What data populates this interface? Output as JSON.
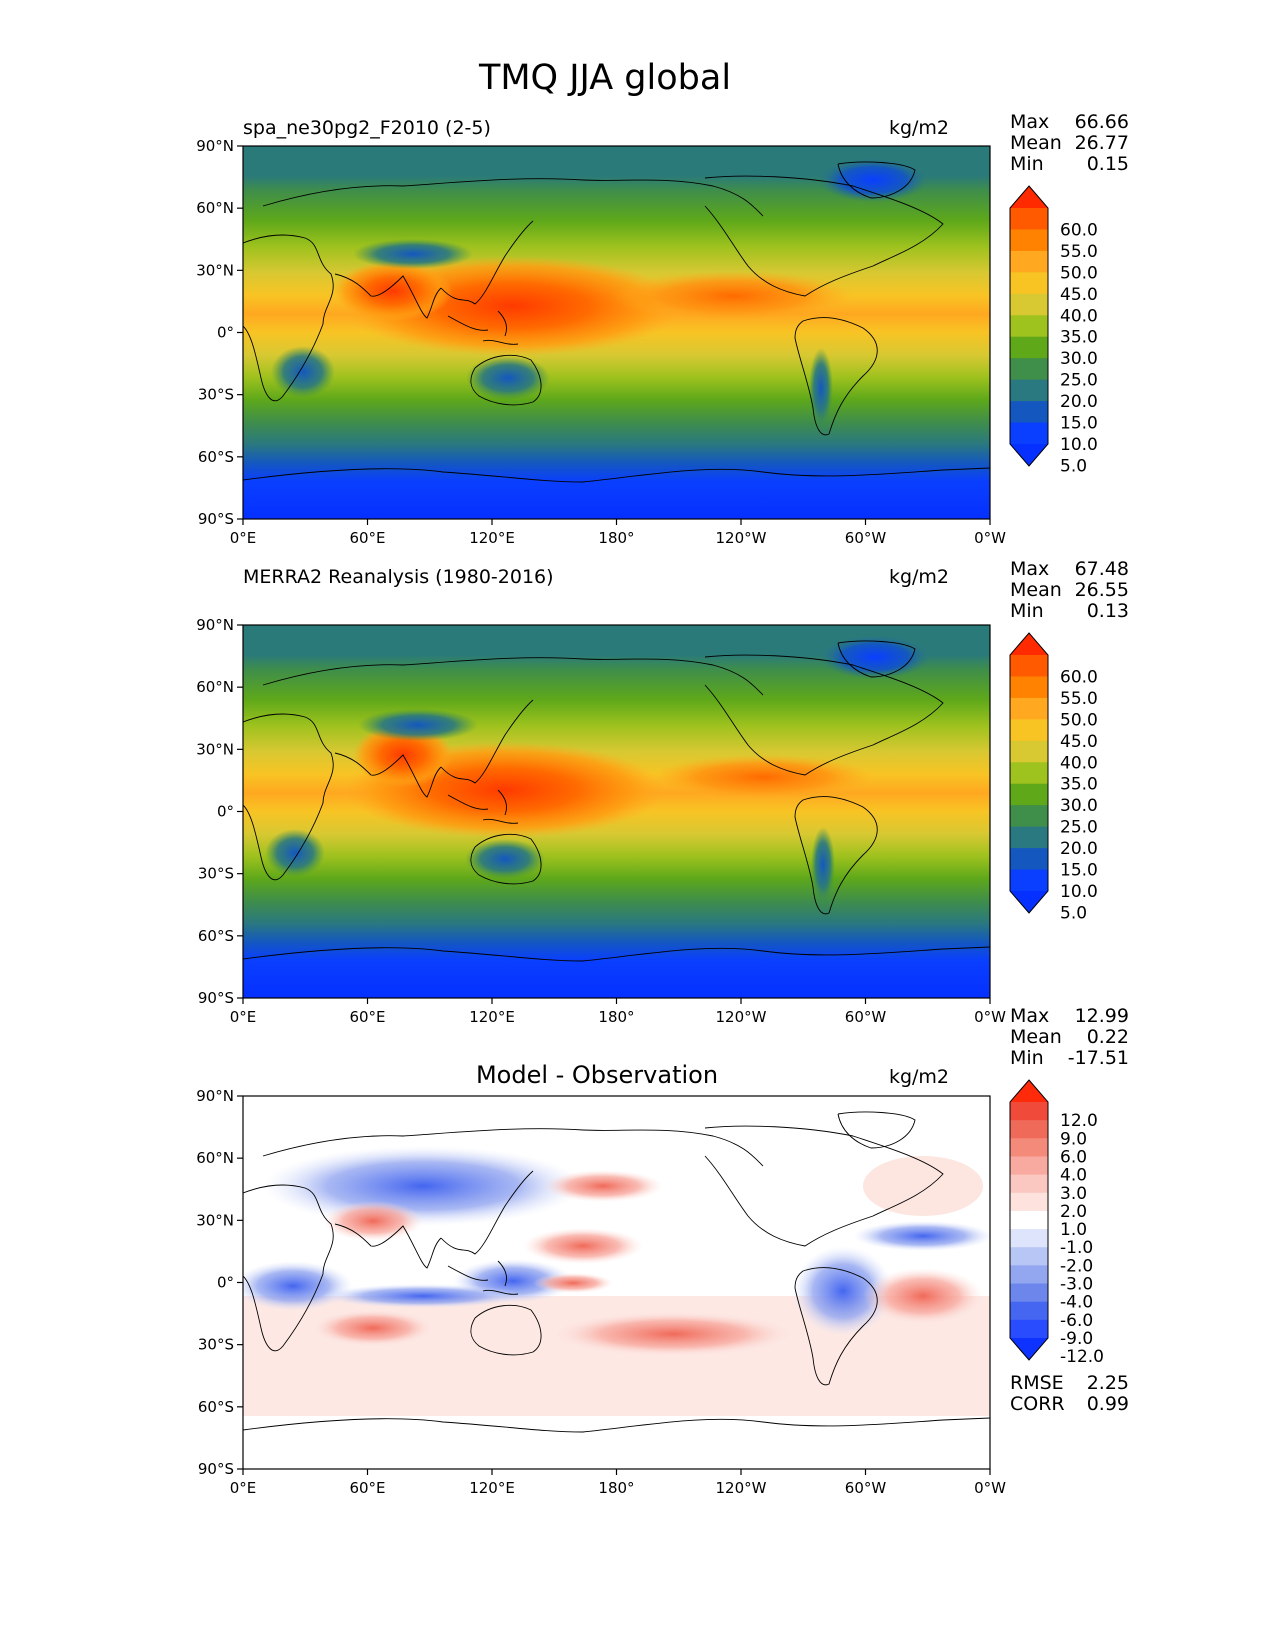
{
  "title": "TMQ JJA global",
  "axes": {
    "lat_ticks": [
      "90°N",
      "60°N",
      "30°N",
      "0°",
      "30°S",
      "60°S",
      "90°S"
    ],
    "lon_ticks": [
      "0°E",
      "60°E",
      "120°E",
      "180°",
      "120°W",
      "60°W",
      "0°W"
    ]
  },
  "panels": [
    {
      "title": "spa_ne30pg2_F2010 (2-5)",
      "units": "kg/m2",
      "stats": [
        {
          "label": "Max",
          "value": "66.66"
        },
        {
          "label": "Mean",
          "value": "26.77"
        },
        {
          "label": "Min",
          "value": "0.15"
        }
      ],
      "colorbar": {
        "labels": [
          "60.0",
          "55.0",
          "50.0",
          "45.0",
          "40.0",
          "35.0",
          "30.0",
          "25.0",
          "20.0",
          "15.0",
          "10.0",
          "5.0"
        ],
        "colors": [
          "#ff2a00",
          "#ff5a00",
          "#ff8200",
          "#ffa820",
          "#f8c424",
          "#d8c832",
          "#9ec21e",
          "#5ea81a",
          "#3f8e4a",
          "#2a7880",
          "#1458bf",
          "#0a3fff",
          "#0530ff"
        ]
      }
    },
    {
      "title": "MERRA2 Reanalysis (1980-2016)",
      "units": "kg/m2",
      "stats": [
        {
          "label": "Max",
          "value": "67.48"
        },
        {
          "label": "Mean",
          "value": "26.55"
        },
        {
          "label": "Min",
          "value": "0.13"
        }
      ],
      "colorbar": {
        "labels": [
          "60.0",
          "55.0",
          "50.0",
          "45.0",
          "40.0",
          "35.0",
          "30.0",
          "25.0",
          "20.0",
          "15.0",
          "10.0",
          "5.0"
        ],
        "colors": [
          "#ff2a00",
          "#ff5a00",
          "#ff8200",
          "#ffa820",
          "#f8c424",
          "#d8c832",
          "#9ec21e",
          "#5ea81a",
          "#3f8e4a",
          "#2a7880",
          "#1458bf",
          "#0a3fff",
          "#0530ff"
        ]
      }
    },
    {
      "title": "Model - Observation",
      "units": "kg/m2",
      "stats": [
        {
          "label": "Max",
          "value": "12.99"
        },
        {
          "label": "Mean",
          "value": "0.22"
        },
        {
          "label": "Min",
          "value": "-17.51"
        }
      ],
      "extra_stats": [
        {
          "label": "RMSE",
          "value": "2.25"
        },
        {
          "label": "CORR",
          "value": "0.99"
        }
      ],
      "colorbar": {
        "labels": [
          "12.0",
          "9.0",
          "6.0",
          "4.0",
          "3.0",
          "2.0",
          "1.0",
          "-1.0",
          "-2.0",
          "-3.0",
          "-4.0",
          "-6.0",
          "-9.0",
          "-12.0"
        ],
        "colors": [
          "#ff2a0a",
          "#f04a3a",
          "#f06a5a",
          "#f48a7a",
          "#f8aaa0",
          "#fac8c0",
          "#fde2dd",
          "#ffffff",
          "#dde4fb",
          "#b8c6f6",
          "#93a6f0",
          "#6c86ec",
          "#4466f0",
          "#2a4cff",
          "#0e32ff"
        ]
      }
    }
  ]
}
